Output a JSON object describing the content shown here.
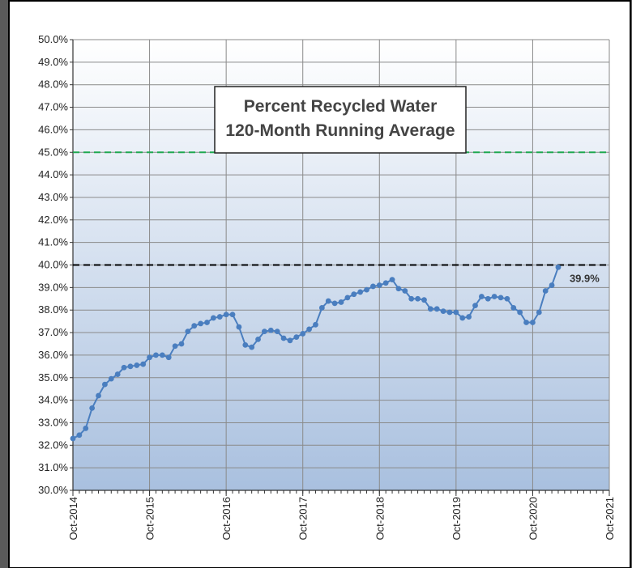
{
  "chart_data": {
    "type": "line",
    "title": "Percent Recycled Water",
    "subtitle": "120-Month Running Average",
    "x": [
      "2014-10",
      "2014-11",
      "2014-12",
      "2015-01",
      "2015-02",
      "2015-03",
      "2015-04",
      "2015-05",
      "2015-06",
      "2015-07",
      "2015-08",
      "2015-09",
      "2015-10",
      "2015-11",
      "2015-12",
      "2016-01",
      "2016-02",
      "2016-03",
      "2016-04",
      "2016-05",
      "2016-06",
      "2016-07",
      "2016-08",
      "2016-09",
      "2016-10",
      "2016-11",
      "2016-12",
      "2017-01",
      "2017-02",
      "2017-03",
      "2017-04",
      "2017-05",
      "2017-06",
      "2017-07",
      "2017-08",
      "2017-09",
      "2017-10",
      "2017-11",
      "2017-12",
      "2018-01",
      "2018-02",
      "2018-03",
      "2018-04",
      "2018-05",
      "2018-06",
      "2018-07",
      "2018-08",
      "2018-09",
      "2018-10",
      "2018-11",
      "2018-12",
      "2019-01",
      "2019-02",
      "2019-03",
      "2019-04",
      "2019-05",
      "2019-06",
      "2019-07",
      "2019-08",
      "2019-09",
      "2019-10",
      "2019-11",
      "2019-12",
      "2020-01",
      "2020-02",
      "2020-03",
      "2020-04",
      "2020-05",
      "2020-06",
      "2020-07",
      "2020-08",
      "2020-09",
      "2020-10",
      "2020-11",
      "2020-12",
      "2021-01",
      "2021-02"
    ],
    "series": [
      {
        "name": "120-Month Running Average",
        "color": "#4a7ebf",
        "values": [
          32.3,
          32.45,
          32.75,
          33.65,
          34.2,
          34.7,
          34.95,
          35.15,
          35.45,
          35.5,
          35.55,
          35.6,
          35.9,
          36.0,
          36.0,
          35.9,
          36.4,
          36.5,
          37.05,
          37.3,
          37.4,
          37.45,
          37.65,
          37.7,
          37.8,
          37.8,
          37.25,
          36.45,
          36.35,
          36.7,
          37.05,
          37.1,
          37.05,
          36.75,
          36.65,
          36.8,
          36.95,
          37.15,
          37.35,
          38.1,
          38.4,
          38.3,
          38.35,
          38.55,
          38.7,
          38.8,
          38.9,
          39.05,
          39.1,
          39.2,
          39.35,
          38.95,
          38.85,
          38.5,
          38.5,
          38.45,
          38.05,
          38.05,
          37.95,
          37.9,
          37.9,
          37.65,
          37.7,
          38.2,
          38.6,
          38.5,
          38.6,
          38.55,
          38.5,
          38.1,
          37.9,
          37.45,
          37.45,
          37.9,
          38.85,
          39.1,
          39.9
        ]
      }
    ],
    "end_label": "39.9%",
    "reference_lines": [
      {
        "value": 45,
        "color": "#1fa850"
      },
      {
        "value": 40,
        "color": "#000000"
      }
    ],
    "xlim": [
      "2014-10",
      "2021-10"
    ],
    "xticks": [
      {
        "value": "2014-10",
        "label": "Oct-2014"
      },
      {
        "value": "2015-10",
        "label": "Oct-2015"
      },
      {
        "value": "2016-10",
        "label": "Oct-2016"
      },
      {
        "value": "2017-10",
        "label": "Oct-2017"
      },
      {
        "value": "2018-10",
        "label": "Oct-2018"
      },
      {
        "value": "2019-10",
        "label": "Oct-2019"
      },
      {
        "value": "2020-10",
        "label": "Oct-2020"
      },
      {
        "value": "2021-10",
        "label": "Oct-2021"
      }
    ],
    "ylim": [
      30,
      50
    ],
    "yticks": [
      {
        "value": 30,
        "label": "30.0%"
      },
      {
        "value": 31,
        "label": "31.0%"
      },
      {
        "value": 32,
        "label": "32.0%"
      },
      {
        "value": 33,
        "label": "33.0%"
      },
      {
        "value": 34,
        "label": "34.0%"
      },
      {
        "value": 35,
        "label": "35.0%"
      },
      {
        "value": 36,
        "label": "36.0%"
      },
      {
        "value": 37,
        "label": "37.0%"
      },
      {
        "value": 38,
        "label": "38.0%"
      },
      {
        "value": 39,
        "label": "39.0%"
      },
      {
        "value": 40,
        "label": "40.0%"
      },
      {
        "value": 41,
        "label": "41.0%"
      },
      {
        "value": 42,
        "label": "42.0%"
      },
      {
        "value": 43,
        "label": "43.0%"
      },
      {
        "value": 44,
        "label": "44.0%"
      },
      {
        "value": 45,
        "label": "45.0%"
      },
      {
        "value": 46,
        "label": "46.0%"
      },
      {
        "value": 47,
        "label": "47.0%"
      },
      {
        "value": 48,
        "label": "48.0%"
      },
      {
        "value": 49,
        "label": "49.0%"
      },
      {
        "value": 50,
        "label": "50.0%"
      }
    ],
    "grid": true
  }
}
